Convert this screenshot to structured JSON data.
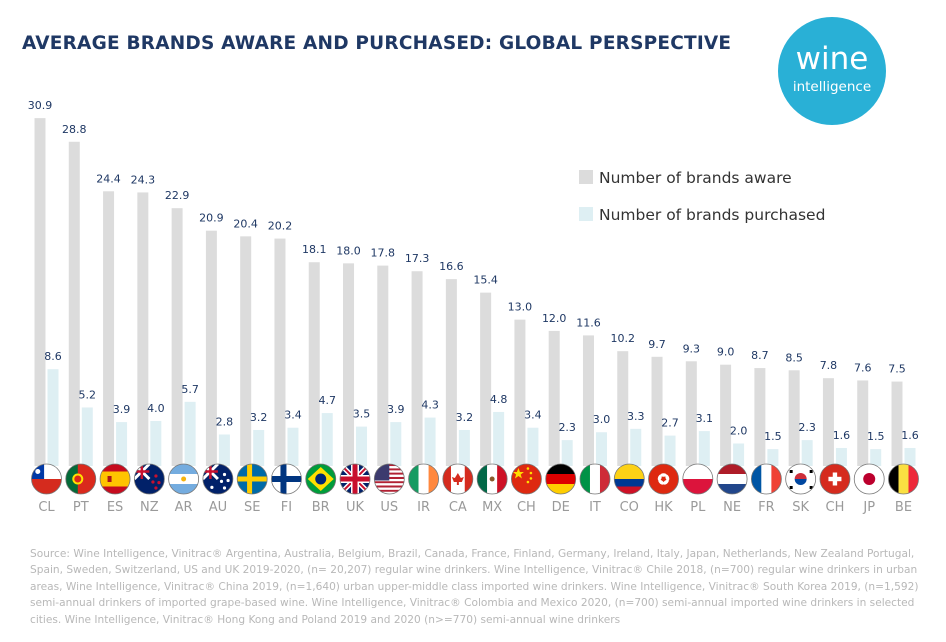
{
  "title": "AVERAGE BRANDS AWARE AND PURCHASED: GLOBAL PERSPECTIVE",
  "logo": {
    "line1": "wine",
    "line2": "intelligence"
  },
  "source": "Source: Wine Intelligence, Vinitrac® Argentina, Australia, Belgium, Brazil, Canada, France, Finland, Germany, Ireland, Italy, Japan, Netherlands, New Zealand Portugal, Spain, Sweden, Switzerland, US and UK 2019-2020, (n= 20,207) regular wine drinkers. Wine Intelligence, Vinitrac® Chile 2018, (n=700) regular wine drinkers in urban areas, Wine Intelligence, Vinitrac® China 2019, (n=1,640) urban upper-middle class imported wine drinkers. Wine Intelligence, Vinitrac® South Korea 2019, (n=1,592) semi-annual drinkers of imported grape-based wine. Wine Intelligence, Vinitrac® Colombia and Mexico 2020, (n=700) semi-annual imported wine drinkers in selected cities. Wine Intelligence, Vinitrac® Hong Kong and Poland 2019 and 2020 (n>=770)  semi-annual wine drinkers",
  "colors": {
    "aware": "#dcdcdc",
    "purchased": "#deeff3",
    "title": "#1f3864",
    "logo": "#29b0d6"
  },
  "chart_data": {
    "type": "bar",
    "categories": [
      "CL",
      "PT",
      "ES",
      "NZ",
      "AR",
      "AU",
      "SE",
      "FI",
      "BR",
      "UK",
      "US",
      "IR",
      "CA",
      "MX",
      "CH",
      "DE",
      "IT",
      "CO",
      "HK",
      "PL",
      "NE",
      "FR",
      "SK",
      "CH",
      "JP",
      "BE"
    ],
    "series": [
      {
        "name": "Number of brands aware",
        "values": [
          30.9,
          28.8,
          24.4,
          24.3,
          22.9,
          20.9,
          20.4,
          20.2,
          18.1,
          18.0,
          17.8,
          17.3,
          16.6,
          15.4,
          13.0,
          12.0,
          11.6,
          10.2,
          9.7,
          9.3,
          9.0,
          8.7,
          8.5,
          7.8,
          7.6,
          7.5
        ],
        "labels": [
          "30.9",
          "28.8",
          "24.4",
          "24.3",
          "22.9",
          "20.9",
          "20.4",
          "20.2",
          "18.1",
          "18.0",
          "17.8",
          "17.3",
          "16.6",
          "15.4",
          "13.0",
          "12.0",
          "11.6",
          "10.2",
          "9.7",
          "9.3",
          "9.0",
          "8.7",
          "8.5",
          "7.8",
          "7.6",
          "7.5"
        ]
      },
      {
        "name": "Number of brands purchased",
        "values": [
          8.6,
          5.2,
          3.9,
          4.0,
          5.7,
          2.8,
          3.2,
          3.4,
          4.7,
          3.5,
          3.9,
          4.3,
          3.2,
          4.8,
          3.4,
          2.3,
          3.0,
          3.3,
          2.7,
          3.1,
          2.0,
          1.5,
          2.3,
          1.6,
          1.5,
          1.6
        ],
        "labels": [
          "8.6",
          "5.2",
          "3.9",
          "4.0",
          "5.7",
          "2.8",
          "3.2",
          "3.4",
          "4.7",
          "3.5",
          "3.9",
          "4.3",
          "3.2",
          "4.8",
          "3.4",
          "2.3",
          "3.0",
          "3.3",
          "2.7",
          "3.1",
          "2.0",
          "1.5",
          "2.3",
          "1.6",
          "1.5",
          "1.6"
        ]
      }
    ],
    "flags": [
      "chile",
      "portugal",
      "spain",
      "new-zealand",
      "argentina",
      "australia",
      "sweden",
      "finland",
      "brazil",
      "uk",
      "usa",
      "ireland",
      "canada",
      "mexico",
      "china",
      "germany",
      "italy",
      "colombia",
      "hong-kong",
      "poland",
      "netherlands",
      "france",
      "south-korea",
      "switzerland",
      "japan",
      "belgium"
    ],
    "ylim": [
      0,
      31
    ],
    "legend_position": "top-right",
    "grid": false
  }
}
